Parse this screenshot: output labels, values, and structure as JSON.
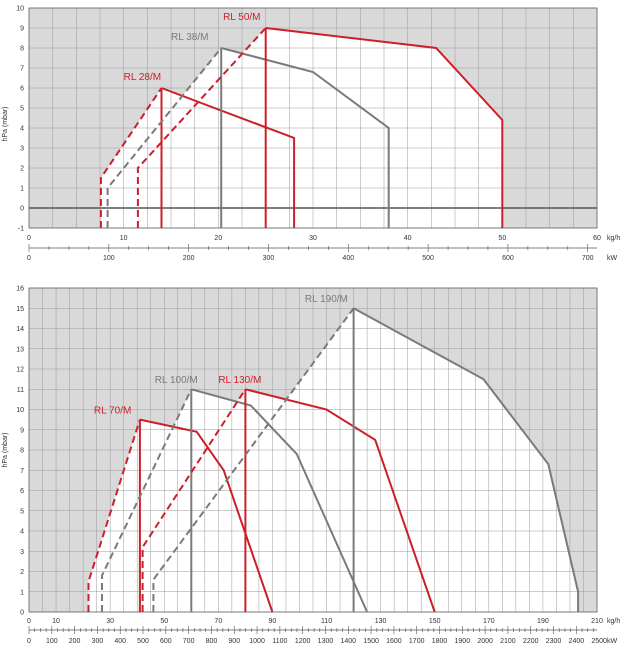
{
  "chart_data": [
    {
      "type": "line",
      "ylabel": "hPa (mbar)",
      "x_unit": "kg/h",
      "x2_unit": "kW",
      "xlim": [
        0,
        60
      ],
      "ylim": [
        -1,
        10
      ],
      "x_ticks": [
        0,
        10,
        20,
        30,
        40,
        50,
        60
      ],
      "y_ticks": [
        -1,
        0,
        1,
        2,
        3,
        4,
        5,
        6,
        7,
        8,
        9,
        10
      ],
      "x2_ticks": [
        0,
        100,
        200,
        300,
        400,
        500,
        600,
        700
      ],
      "x2_per_x": 11.86,
      "grid": true,
      "colors": {
        "red": "#cc1f2a",
        "gray": "#7a7a7a",
        "shade": "#d9d9d9",
        "grid": "#9a9a9a"
      },
      "series": [
        {
          "name": "RL 28/M",
          "color": "red",
          "start_dashed": [
            [
              7.6,
              -1
            ],
            [
              7.6,
              1.5
            ],
            [
              14,
              6
            ]
          ],
          "max_output": [
            [
              14,
              6
            ],
            [
              28,
              3.5
            ],
            [
              28,
              -1
            ]
          ],
          "start_vertical": [
            [
              14,
              -1
            ],
            [
              14,
              6
            ]
          ]
        },
        {
          "name": "RL 38/M",
          "color": "gray",
          "start_dashed": [
            [
              8.3,
              -1
            ],
            [
              8.3,
              1
            ],
            [
              20.3,
              8
            ]
          ],
          "max_output": [
            [
              20.3,
              8
            ],
            [
              30,
              6.8
            ],
            [
              38,
              4
            ],
            [
              38,
              -1
            ]
          ],
          "start_vertical": [
            [
              20.3,
              -1
            ],
            [
              20.3,
              8
            ]
          ]
        },
        {
          "name": "RL 50/M",
          "color": "red",
          "start_dashed": [
            [
              11.5,
              -1
            ],
            [
              11.5,
              2
            ],
            [
              25,
              9
            ]
          ],
          "max_output": [
            [
              25,
              9
            ],
            [
              43,
              8
            ],
            [
              50,
              4.4
            ],
            [
              50,
              -1
            ]
          ],
          "start_vertical": [
            [
              25,
              -1
            ],
            [
              25,
              9
            ]
          ]
        }
      ],
      "label_positions": {
        "RL 28/M": [
          10,
          6.4
        ],
        "RL 38/M": [
          15,
          8.4
        ],
        "RL 50/M": [
          20.5,
          9.4
        ]
      }
    },
    {
      "type": "line",
      "ylabel": "hPa (mbar)",
      "x_unit": "kg/h",
      "x2_unit": "kW",
      "xlim": [
        0,
        210
      ],
      "ylim": [
        0,
        16
      ],
      "x_ticks": [
        0,
        10,
        30,
        50,
        70,
        90,
        110,
        130,
        150,
        170,
        190,
        210
      ],
      "y_ticks": [
        0,
        1,
        2,
        3,
        4,
        5,
        6,
        7,
        8,
        9,
        10,
        11,
        12,
        13,
        14,
        15,
        16
      ],
      "x2_ticks": [
        0,
        100,
        200,
        300,
        400,
        500,
        600,
        700,
        800,
        900,
        1000,
        1100,
        1200,
        1300,
        1400,
        1500,
        1600,
        1700,
        1800,
        1900,
        2000,
        2100,
        2200,
        2300,
        2400,
        2500
      ],
      "x2_per_x": 11.86,
      "grid": true,
      "series": [
        {
          "name": "RL 70/M",
          "color": "red",
          "start_dashed": [
            [
              22,
              0
            ],
            [
              22,
              1.5
            ],
            [
              41,
              9.5
            ]
          ],
          "max_output": [
            [
              41,
              9.5
            ],
            [
              62,
              8.9
            ],
            [
              72,
              7
            ],
            [
              90,
              0
            ]
          ],
          "start_vertical": [
            [
              41,
              0
            ],
            [
              41,
              9.5
            ]
          ]
        },
        {
          "name": "RL 100/M",
          "color": "gray",
          "start_dashed": [
            [
              27,
              0
            ],
            [
              27,
              1.8
            ],
            [
              60,
              11
            ]
          ],
          "max_output": [
            [
              60,
              11
            ],
            [
              82,
              10.2
            ],
            [
              99,
              7.8
            ],
            [
              125,
              0
            ]
          ],
          "start_vertical": [
            [
              60,
              0
            ],
            [
              60,
              11
            ]
          ]
        },
        {
          "name": "RL 130/M",
          "color": "red",
          "start_dashed": [
            [
              42,
              0
            ],
            [
              42,
              3.2
            ],
            [
              80,
              11
            ]
          ],
          "max_output": [
            [
              80,
              11
            ],
            [
              110,
              10
            ],
            [
              128,
              8.5
            ],
            [
              150,
              0
            ]
          ],
          "start_vertical": [
            [
              80,
              0
            ],
            [
              80,
              11
            ]
          ]
        },
        {
          "name": "RL 190/M",
          "color": "gray",
          "start_dashed": [
            [
              46,
              0
            ],
            [
              46,
              1.6
            ],
            [
              120,
              15
            ]
          ],
          "max_output": [
            [
              120,
              15
            ],
            [
              168,
              11.5
            ],
            [
              192,
              7.3
            ],
            [
              203,
              1
            ],
            [
              203,
              0
            ]
          ],
          "start_vertical": [
            [
              120,
              0
            ],
            [
              120,
              15
            ]
          ]
        }
      ],
      "label_positions": {
        "RL 70/M": [
          24,
          9.8
        ],
        "RL 100/M": [
          46.5,
          11.3
        ],
        "RL 130/M": [
          70,
          11.3
        ],
        "RL 190/M": [
          102,
          15.3
        ]
      }
    }
  ]
}
